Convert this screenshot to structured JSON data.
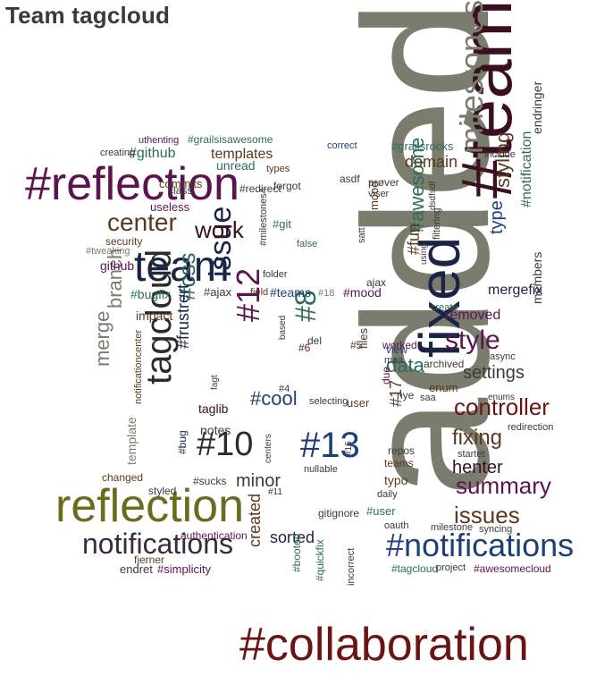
{
  "page": {
    "title": "Team tagcloud"
  },
  "palette": {
    "dark_gray": "#7a7d6e",
    "maroon": "#6b1414",
    "purple": "#5c1450",
    "navy": "#1a2545",
    "blue": "#1f3f7a",
    "olive": "#6b6b1e",
    "teal": "#2f6b5c",
    "brown": "#5a3a1e",
    "dark": "#2b2b2b",
    "charcoal": "#3a3a3a"
  },
  "tags": [
    {
      "text": "added",
      "color": "#7a7d6e"
    },
    {
      "text": "#collaboration",
      "color": "#6b1414"
    },
    {
      "text": "#team",
      "color": "#3a1020"
    },
    {
      "text": "fixed",
      "color": "#1a2545"
    },
    {
      "text": "#reflection",
      "color": "#5c1450"
    },
    {
      "text": "reflection",
      "color": "#6b6b1e"
    },
    {
      "text": "team",
      "color": "#1a2545"
    },
    {
      "text": "milestones",
      "color": "#7a7d6e"
    },
    {
      "text": "#notifications",
      "color": "#1f3f7a"
    },
    {
      "text": "notifications",
      "color": "#3a2a3a"
    },
    {
      "text": "tagcloud",
      "color": "#2b2b2b"
    },
    {
      "text": "#13",
      "color": "#1f3f7a"
    },
    {
      "text": "#10",
      "color": "#2b2b2b"
    },
    {
      "text": "#12",
      "color": "#5c1450"
    },
    {
      "text": "issue",
      "color": "#1a2545"
    },
    {
      "text": "#8",
      "color": "#2f6b5c"
    },
    {
      "text": "style",
      "color": "#5c1450"
    },
    {
      "text": "center",
      "color": "#5a3a1e"
    },
    {
      "text": "work",
      "color": "#3a1020"
    },
    {
      "text": "summary",
      "color": "#5c1450"
    },
    {
      "text": "controller",
      "color": "#6b1414"
    },
    {
      "text": "issues",
      "color": "#5a3a1e"
    },
    {
      "text": "#css",
      "color": "#2f6b5c"
    },
    {
      "text": "merge",
      "color": "#7a7d6e"
    },
    {
      "text": "branch",
      "color": "#7a7d6e"
    },
    {
      "text": "#frustrert",
      "color": "#1a2545"
    },
    {
      "text": "#awesome",
      "color": "#2f6b5c"
    },
    {
      "text": "styling",
      "color": "#5a3a1e"
    },
    {
      "text": "type",
      "color": "#1f3f7a"
    },
    {
      "text": "data",
      "color": "#2f6b5c"
    },
    {
      "text": "settings",
      "color": "#3a3a3a"
    },
    {
      "text": "fixing",
      "color": "#5a3a1e"
    },
    {
      "text": "henter",
      "color": "#3a1020"
    },
    {
      "text": "#cool",
      "color": "#1f3f7a"
    },
    {
      "text": "domain",
      "color": "#5a3a1e"
    },
    {
      "text": "#fun",
      "color": "#5a3a1e"
    },
    {
      "text": "minor",
      "color": "#3a3a3a"
    },
    {
      "text": "#17",
      "color": "#5a3a1e"
    },
    {
      "text": "templates",
      "color": "#5a3a1e"
    },
    {
      "text": "#github",
      "color": "#2f6b5c"
    },
    {
      "text": "created",
      "color": "#5a3a1e"
    },
    {
      "text": "sorted",
      "color": "#1a2545"
    },
    {
      "text": "#notification",
      "color": "#2f6b5c"
    },
    {
      "text": "endringer",
      "color": "#3a3a3a"
    },
    {
      "text": "members",
      "color": "#3a3a3a"
    },
    {
      "text": "mergefix",
      "color": "#1a2545"
    },
    {
      "text": "removed",
      "color": "#5c1450"
    },
    {
      "text": "unread",
      "color": "#2f6b5c"
    },
    {
      "text": "#grailsrocks",
      "color": "#2f6b5c"
    },
    {
      "text": "#grailsisawesome",
      "color": "#2f6b5c"
    },
    {
      "text": "uthenting",
      "color": "#5c1450"
    },
    {
      "text": "commits",
      "color": "#5a3a1e"
    },
    {
      "text": "useless",
      "color": "#5c1450"
    },
    {
      "text": "security",
      "color": "#5a3a1e"
    },
    {
      "text": "github",
      "color": "#5c1450"
    },
    {
      "text": "#bugfix",
      "color": "#2f6b5c"
    },
    {
      "text": "impact",
      "color": "#5a3a1e"
    },
    {
      "text": "#ajax",
      "color": "#3a3a3a"
    },
    {
      "text": "#git",
      "color": "#2f6b5c"
    },
    {
      "text": "#teams",
      "color": "#1f3f7a"
    },
    {
      "text": "#mood",
      "color": "#5c1450"
    },
    {
      "text": "mood",
      "color": "#5a3a1e"
    },
    {
      "text": "ajax",
      "color": "#3a3a3a"
    },
    {
      "text": "files",
      "color": "#3a3a3a"
    },
    {
      "text": "del",
      "color": "#3a3a3a"
    },
    {
      "text": "#6",
      "color": "#5c1450"
    },
    {
      "text": "#5",
      "color": "#5a3a1e"
    },
    {
      "text": "taglib",
      "color": "#3a1020"
    },
    {
      "text": "notes",
      "color": "#3a3a3a"
    },
    {
      "text": "template",
      "color": "#7a7d6e"
    },
    {
      "text": "notificationcenter",
      "color": "#5a3a1e"
    },
    {
      "text": "#bug",
      "color": "#1a2545"
    },
    {
      "text": "#sucks",
      "color": "#3a3a3a"
    },
    {
      "text": "changed",
      "color": "#5a3a1e"
    },
    {
      "text": "styled",
      "color": "#3a3a3a"
    },
    {
      "text": "fjerner",
      "color": "#5a3a1e"
    },
    {
      "text": "authentication",
      "color": "#5c1450"
    },
    {
      "text": "endret",
      "color": "#3a3a3a"
    },
    {
      "text": "#simplicity",
      "color": "#5c1450"
    },
    {
      "text": "#booted",
      "color": "#2f6b5c"
    },
    {
      "text": "#quickfix",
      "color": "#2f6b5c"
    },
    {
      "text": "#user",
      "color": "#2f6b5c"
    },
    {
      "text": "gitignore",
      "color": "#3a3a3a"
    },
    {
      "text": "nullable",
      "color": "#3a3a3a"
    },
    {
      "text": "selecting",
      "color": "#3a3a3a"
    },
    {
      "text": "user",
      "color": "#5a3a1e"
    },
    {
      "text": "#4",
      "color": "#3a3a3a"
    },
    {
      "text": "saa",
      "color": "#3a3a3a"
    },
    {
      "text": "enum",
      "color": "#5a3a1e"
    },
    {
      "text": "archived",
      "color": "#3a3a3a"
    },
    {
      "text": "worked",
      "color": "#5c1450"
    },
    {
      "text": "view",
      "color": "#1f3f7a"
    },
    {
      "text": "maa",
      "color": "#3a3a3a"
    },
    {
      "text": "nye",
      "color": "#3a3a3a"
    },
    {
      "text": "due",
      "color": "#5c1450"
    },
    {
      "text": "typo",
      "color": "#5a3a1e"
    },
    {
      "text": "repos",
      "color": "#3a3a3a"
    },
    {
      "text": "teams",
      "color": "#5a3a1e"
    },
    {
      "text": "daily",
      "color": "#3a3a3a"
    },
    {
      "text": "startet",
      "color": "#3a3a3a"
    },
    {
      "text": "redirection",
      "color": "#3a3a3a"
    },
    {
      "text": "oauth",
      "color": "#3a3a3a"
    },
    {
      "text": "milestone",
      "color": "#3a3a3a"
    },
    {
      "text": "syncing",
      "color": "#3a3a3a"
    },
    {
      "text": "incorrect",
      "color": "#3a3a3a"
    },
    {
      "text": "#tagcloud",
      "color": "#2f6b5c"
    },
    {
      "text": "project",
      "color": "#3a3a3a"
    },
    {
      "text": "#awesomecloud",
      "color": "#5c1450"
    },
    {
      "text": "forgot",
      "color": "#3a3a3a"
    },
    {
      "text": "types",
      "color": "#5a3a1e"
    },
    {
      "text": "asdf",
      "color": "#3a3a3a"
    },
    {
      "text": "prøver",
      "color": "#3a3a3a"
    },
    {
      "text": "viser",
      "color": "#3a3a3a"
    },
    {
      "text": "correct",
      "color": "#1f3f7a"
    },
    {
      "text": "#milestones4",
      "color": "#3a3a3a"
    },
    {
      "text": "satt",
      "color": "#3a3a3a"
    },
    {
      "text": "false",
      "color": "#2f6b5c"
    },
    {
      "text": "folder",
      "color": "#3a3a3a"
    },
    {
      "text": "field",
      "color": "#5a3a1e"
    },
    {
      "text": "#18",
      "color": "#7a7d6e"
    },
    {
      "text": "#redirect",
      "color": "#3a3a3a"
    },
    {
      "text": "class",
      "color": "#3a3a3a"
    },
    {
      "text": "creating",
      "color": "#3a3a3a"
    },
    {
      "text": "#tweaking",
      "color": "#7a7d6e"
    },
    {
      "text": "include",
      "color": "#3a3a3a"
    },
    {
      "text": "create",
      "color": "#2f6b5c"
    },
    {
      "text": "async",
      "color": "#3a3a3a"
    },
    {
      "text": "filtering",
      "color": "#3a3a3a"
    },
    {
      "text": "dsdfsdf",
      "color": "#3a3a3a"
    },
    {
      "text": "#11",
      "color": "#3a3a3a"
    },
    {
      "text": "#16",
      "color": "#3a3a3a"
    },
    {
      "text": "centers",
      "color": "#3a3a3a"
    },
    {
      "text": "enums",
      "color": "#3a3a3a"
    },
    {
      "text": "based",
      "color": "#3a3a3a"
    },
    {
      "text": "fagt",
      "color": "#3a3a3a"
    },
    {
      "text": "using",
      "color": "#3a3a3a"
    }
  ]
}
